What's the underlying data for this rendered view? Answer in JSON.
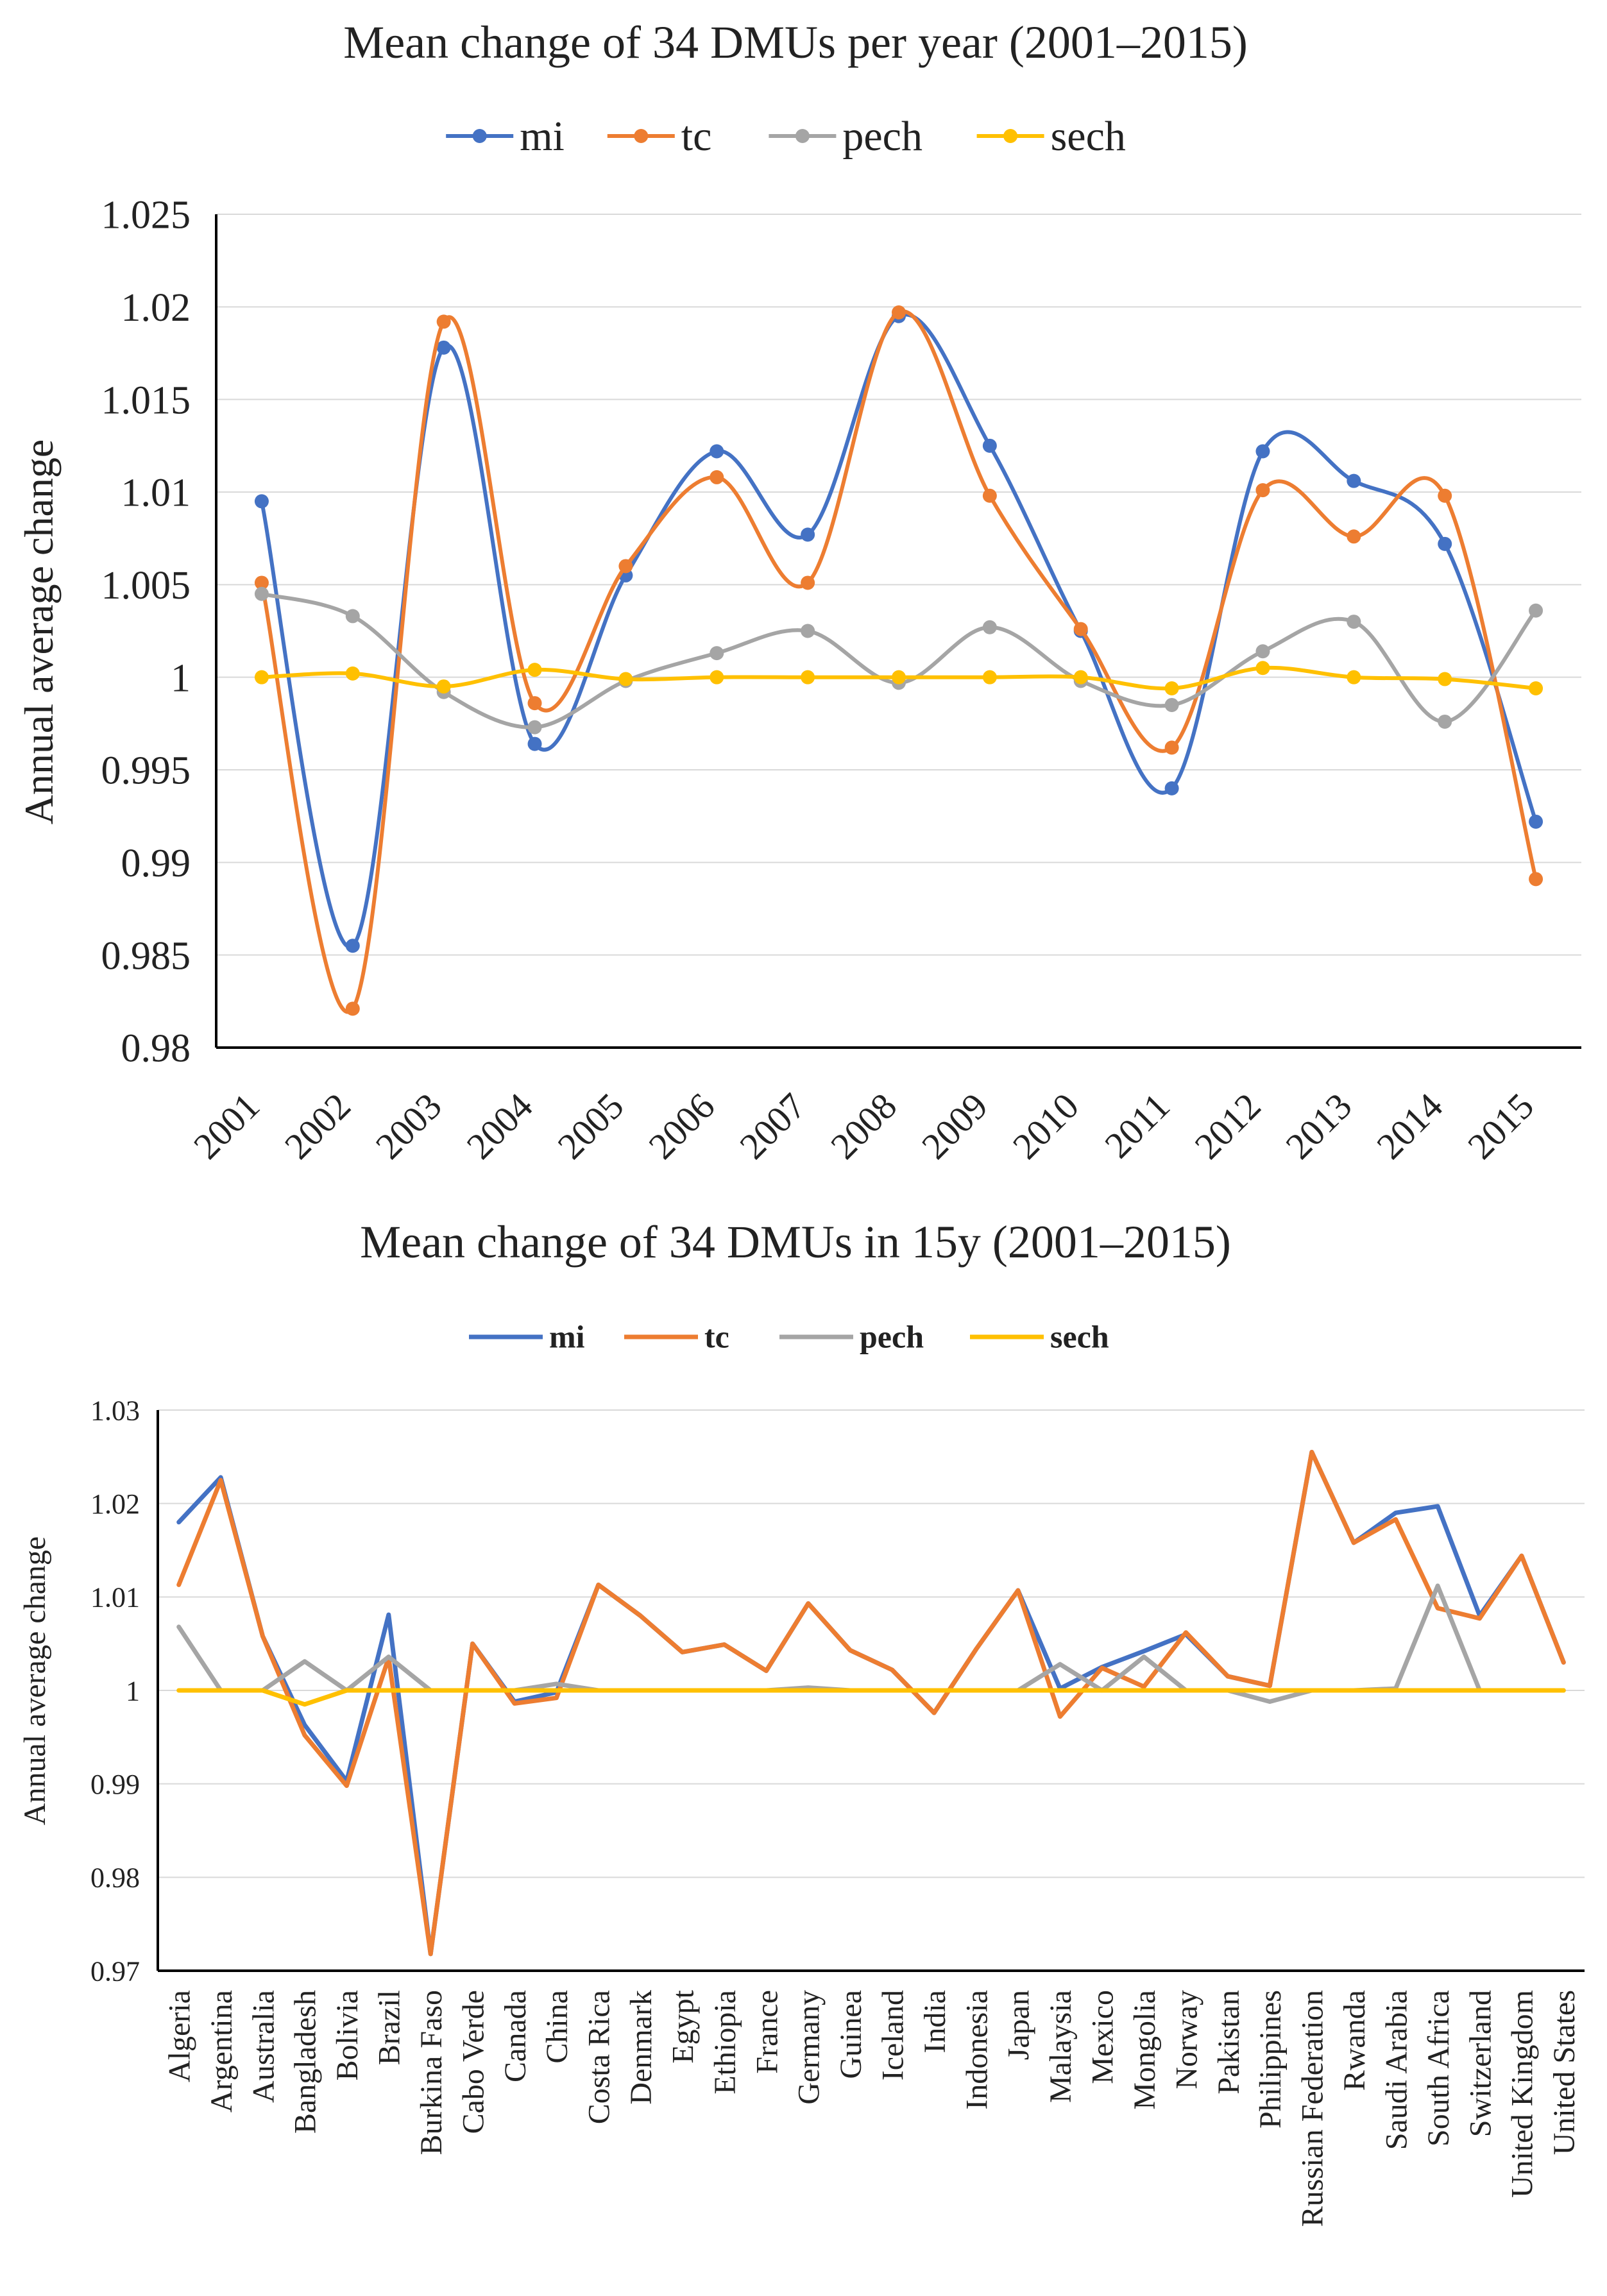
{
  "chart_data": [
    {
      "type": "line",
      "title": "Mean change of 34 DMUs per year (2001–2015)",
      "xlabel": "",
      "ylabel": "Annual average change",
      "ylim": [
        0.98,
        1.025
      ],
      "yticks": [
        0.98,
        0.985,
        0.99,
        0.995,
        1,
        1.005,
        1.01,
        1.015,
        1.02,
        1.025
      ],
      "ytick_labels": [
        "0.98",
        "0.985",
        "0.99",
        "0.995",
        "1",
        "1.005",
        "1.01",
        "1.015",
        "1.02",
        "1.025"
      ],
      "categories": [
        "2001",
        "2002",
        "2003",
        "2004",
        "2005",
        "2006",
        "2007",
        "2008",
        "2009",
        "2010",
        "2011",
        "2012",
        "2013",
        "2014",
        "2015"
      ],
      "smooth": true,
      "markers": true,
      "grid": "horizontal",
      "legend_position": "top",
      "series": [
        {
          "name": "mi",
          "color": "#4472C4",
          "values": [
            1.0095,
            0.9855,
            1.0178,
            0.9964,
            1.0055,
            1.0122,
            1.0077,
            1.0195,
            1.0125,
            1.0025,
            0.994,
            1.0122,
            1.0106,
            1.0072,
            0.9922
          ]
        },
        {
          "name": "tc",
          "color": "#ED7D31",
          "values": [
            1.0051,
            0.9821,
            1.0192,
            0.9986,
            1.006,
            1.0108,
            1.0051,
            1.0197,
            1.0098,
            1.0026,
            0.9962,
            1.0101,
            1.0076,
            1.0098,
            0.9891
          ]
        },
        {
          "name": "pech",
          "color": "#A5A5A5",
          "values": [
            1.0045,
            1.0033,
            0.9992,
            0.9973,
            0.9998,
            1.0013,
            1.0025,
            0.9997,
            1.0027,
            0.9998,
            0.9985,
            1.0014,
            1.003,
            0.9976,
            1.0036
          ]
        },
        {
          "name": "sech",
          "color": "#FFC000",
          "values": [
            1.0,
            1.0002,
            0.9995,
            1.0004,
            0.9999,
            1.0,
            1.0,
            1.0,
            1.0,
            1.0,
            0.9994,
            1.0005,
            1.0,
            0.9999,
            0.9994
          ]
        }
      ]
    },
    {
      "type": "line",
      "title": "Mean change of 34 DMUs in 15y (2001–2015)",
      "xlabel": "",
      "ylabel": "Annual average change",
      "ylim": [
        0.97,
        1.03
      ],
      "yticks": [
        0.97,
        0.98,
        0.99,
        1,
        1.01,
        1.02,
        1.03
      ],
      "ytick_labels": [
        "0.97",
        "0.98",
        "0.99",
        "1",
        "1.01",
        "1.02",
        "1.03"
      ],
      "categories": [
        "Algeria",
        "Argentina",
        "Australia",
        "Bangladesh",
        "Bolivia",
        "Brazil",
        "Burkina Faso",
        "Cabo Verde",
        "Canada",
        "China",
        "Costa Rica",
        "Denmark",
        "Egypt",
        "Ethiopia",
        "France",
        "Germany",
        "Guinea",
        "Iceland",
        "India",
        "Indonesia",
        "Japan",
        "Malaysia",
        "Mexico",
        "Mongolia",
        "Norway",
        "Pakistan",
        "Philippines",
        "Russian Federation",
        "Rwanda",
        "Saudi Arabia",
        "South Africa",
        "Switzerland",
        "United Kingdom",
        "United States"
      ],
      "smooth": false,
      "markers": false,
      "grid": "horizontal",
      "legend_position": "top",
      "series": [
        {
          "name": "mi",
          "color": "#4472C4",
          "values": [
            1.018,
            1.0228,
            1.0058,
            0.9963,
            0.9903,
            1.0081,
            0.9718,
            1.005,
            0.9988,
            0.9998,
            1.0113,
            1.008,
            1.0041,
            1.0049,
            1.0021,
            1.0093,
            1.0043,
            1.0022,
            0.9976,
            1.0044,
            1.0107,
            1.0002,
            1.0025,
            1.0042,
            1.006,
            1.0015,
            1.0005,
            1.0255,
            1.0158,
            1.019,
            1.0197,
            1.008,
            1.0144,
            1.003
          ]
        },
        {
          "name": "tc",
          "color": "#ED7D31",
          "values": [
            1.0113,
            1.0225,
            1.0058,
            0.9952,
            0.9898,
            1.0035,
            0.9718,
            1.005,
            0.9986,
            0.9992,
            1.0113,
            1.008,
            1.0041,
            1.0049,
            1.0021,
            1.0093,
            1.0043,
            1.0022,
            0.9976,
            1.0044,
            1.0107,
            0.9972,
            1.0024,
            1.0004,
            1.0062,
            1.0015,
            1.0005,
            1.0255,
            1.0158,
            1.0183,
            1.0088,
            1.0077,
            1.0144,
            1.003
          ]
        },
        {
          "name": "pech",
          "color": "#A5A5A5",
          "values": [
            1.0068,
            1.0,
            1.0,
            1.0031,
            1.0,
            1.0036,
            1.0,
            1.0,
            1.0,
            1.0007,
            1.0,
            1.0,
            1.0,
            1.0,
            1.0,
            1.0003,
            1.0,
            1.0,
            1.0,
            1.0,
            1.0,
            1.0028,
            1.0,
            1.0036,
            1.0,
            1.0,
            0.9988,
            1.0,
            1.0,
            1.0002,
            1.0112,
            1.0,
            1.0,
            1.0
          ]
        },
        {
          "name": "sech",
          "color": "#FFC000",
          "values": [
            1.0,
            1.0,
            1.0,
            0.9985,
            1.0,
            1.0,
            1.0,
            1.0,
            1.0,
            1.0,
            1.0,
            1.0,
            1.0,
            1.0,
            1.0,
            1.0,
            1.0,
            1.0,
            1.0,
            1.0,
            1.0,
            1.0,
            1.0,
            1.0,
            1.0,
            1.0,
            1.0,
            1.0,
            1.0,
            1.0,
            1.0,
            1.0,
            1.0,
            1.0
          ]
        }
      ]
    }
  ]
}
